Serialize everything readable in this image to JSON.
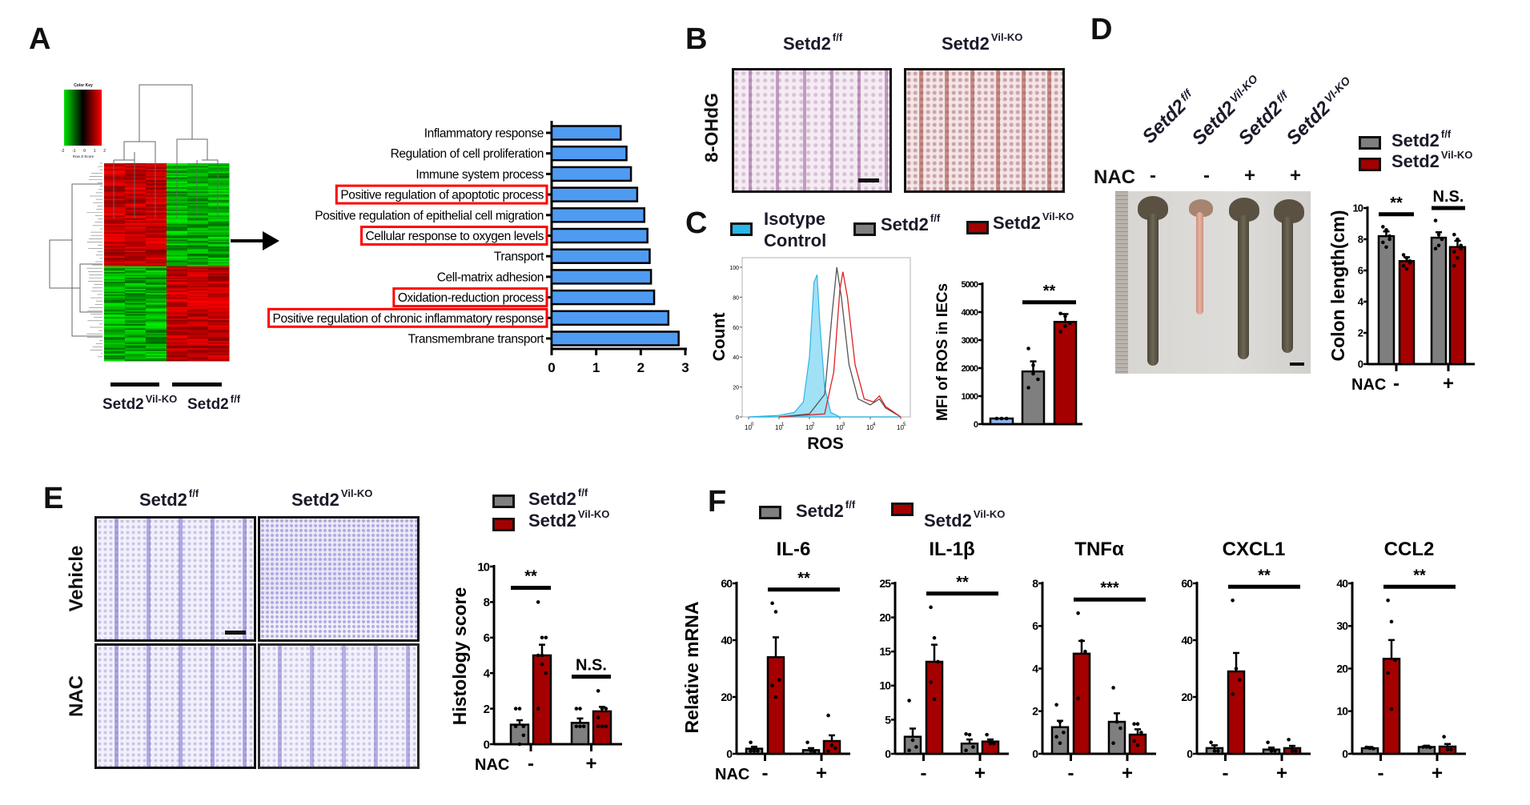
{
  "panels": {
    "a": "A",
    "b": "B",
    "c": "C",
    "d": "D",
    "e": "E",
    "f": "F"
  },
  "genotypes": {
    "ff": {
      "base": "Setd2",
      "sup": "f/f"
    },
    "ko": {
      "base": "Setd2",
      "sup": "Vil-KO"
    },
    "ko_alt": {
      "base": "Setd2",
      "sup": "Vl-KO"
    },
    "isotype_line1": "Isotype",
    "isotype_line2": "Control"
  },
  "colors": {
    "ff": "#7f7f7f",
    "ko": "#a40000",
    "isotype": "#29b6e8",
    "isotype_bar": "#8fb4f0",
    "go_bar": "#4f9bf2",
    "highlight_box": "#ff0000",
    "heat_high": "#ff0000",
    "heat_low": "#00e000"
  },
  "panel_a": {
    "color_key_title": "Color Key",
    "color_key_ticks": [
      "-2",
      "-1",
      "0",
      "1",
      "2"
    ],
    "color_key_label": "Row Z-Score"
  },
  "panel_b": {
    "stain_label": "8-OHdG"
  },
  "panel_d": {
    "nac_label": "NAC",
    "nac_signs": [
      "-",
      "-",
      "+",
      "+"
    ]
  },
  "panel_e": {
    "row_labels": [
      "Vehicle",
      "NAC"
    ]
  },
  "chart_data": [
    {
      "type": "bar",
      "orientation": "horizontal",
      "categories": [
        "Inflammatory response",
        "Regulation of cell proliferation",
        "Immune system process",
        "Positive regulation of apoptotic process",
        "Positive regulation of epithelial cell migration",
        "Cellular response to oxygen levels",
        "Transport",
        "Cell-matrix adhesion",
        "Oxidation-reduction process",
        "Positive regulation of chronic inflammatory response",
        "Transmembrane transport"
      ],
      "values": [
        1.55,
        1.68,
        1.78,
        1.92,
        2.08,
        2.15,
        2.2,
        2.23,
        2.3,
        2.62,
        2.85
      ],
      "highlighted": [
        3,
        5,
        8,
        9
      ],
      "xlim": [
        0,
        3
      ],
      "xticks": [
        "0",
        "1",
        "2",
        "3"
      ],
      "xlabel": "",
      "ylabel": ""
    },
    {
      "type": "line",
      "subtype": "flow-cytometry-histogram",
      "xlabel": "ROS",
      "ylabel": "Count",
      "x_scale": "log",
      "xlim": [
        1,
        100000
      ],
      "ylim": [
        0,
        100
      ],
      "xtick_base": "10",
      "xtick_exponents": [
        "0",
        "1",
        "2",
        "3",
        "4",
        "5"
      ],
      "yticks": [
        "0",
        "20",
        "40",
        "60",
        "80",
        "100"
      ],
      "series": [
        {
          "group": "isotype",
          "filled": true,
          "x": [
            1,
            10,
            32,
            63,
            100,
            141,
            178,
            224,
            316,
            501,
            1000,
            100000
          ],
          "y": [
            0,
            1,
            3,
            10,
            40,
            90,
            95,
            60,
            20,
            3,
            0,
            0
          ]
        },
        {
          "group": "ff",
          "filled": false,
          "x": [
            10,
            100,
            316,
            562,
            794,
            1122,
            1995,
            3981,
            10000,
            19953,
            31623,
            100000
          ],
          "y": [
            0,
            2,
            15,
            70,
            100,
            80,
            35,
            12,
            8,
            12,
            6,
            0
          ]
        },
        {
          "group": "ko",
          "filled": false,
          "x": [
            10,
            316,
            631,
            1000,
            1259,
            1778,
            3162,
            6310,
            12589,
            19953,
            31623,
            100000
          ],
          "y": [
            0,
            2,
            30,
            85,
            97,
            80,
            35,
            12,
            10,
            14,
            7,
            0
          ]
        }
      ]
    },
    {
      "type": "bar",
      "ylabel": "MFI of ROS in IECs",
      "ylim": [
        0,
        5000
      ],
      "yticks": [
        "0",
        "1000",
        "2000",
        "3000",
        "4000",
        "5000"
      ],
      "bars": [
        {
          "group": "isotype",
          "value": 200,
          "sem": 0,
          "points": [
            200,
            200,
            200
          ]
        },
        {
          "group": "ff",
          "value": 1880,
          "sem": 360,
          "points": [
            2700,
            2100,
            1600,
            1300,
            1800
          ]
        },
        {
          "group": "ko",
          "value": 3650,
          "sem": 280,
          "points": [
            3950,
            3850,
            3600,
            3300,
            3500
          ]
        }
      ],
      "significance": [
        {
          "label": "**",
          "from": 1,
          "to": 2
        }
      ]
    },
    {
      "type": "bar",
      "ylabel": "Colon length(cm)",
      "ylim": [
        0,
        10
      ],
      "yticks": [
        "0",
        "2",
        "4",
        "6",
        "8",
        "10"
      ],
      "x_row_label": "NAC",
      "groups": [
        "-",
        "+"
      ],
      "bars": [
        {
          "group": "ff",
          "nac": 0,
          "value": 8.2,
          "sem": 0.3,
          "points": [
            8.8,
            8.6,
            8.2,
            7.8,
            7.5,
            8.0
          ]
        },
        {
          "group": "ko",
          "nac": 0,
          "value": 6.6,
          "sem": 0.25,
          "points": [
            7.0,
            6.8,
            6.5,
            6.3,
            6.1,
            6.6
          ]
        },
        {
          "group": "ff",
          "nac": 1,
          "value": 8.1,
          "sem": 0.35,
          "points": [
            9.2,
            8.3,
            8.0,
            7.4,
            7.6
          ]
        },
        {
          "group": "ko",
          "nac": 1,
          "value": 7.5,
          "sem": 0.4,
          "points": [
            8.3,
            8.0,
            7.6,
            7.2,
            6.8,
            7.4,
            6.3
          ]
        }
      ],
      "significance": [
        {
          "label": "**",
          "from": 0,
          "to": 1
        },
        {
          "label": "N.S.",
          "from": 2,
          "to": 3
        }
      ]
    },
    {
      "type": "bar",
      "ylabel": "Histology score",
      "ylim": [
        0,
        10
      ],
      "yticks": [
        "0",
        "2",
        "4",
        "6",
        "8",
        "10"
      ],
      "x_row_label": "NAC",
      "groups": [
        "-",
        "+"
      ],
      "bars": [
        {
          "group": "ff",
          "nac": 0,
          "value": 1.1,
          "sem": 0.25,
          "points": [
            2,
            2,
            1,
            1,
            0,
            0.5
          ]
        },
        {
          "group": "ko",
          "nac": 0,
          "value": 5.0,
          "sem": 0.6,
          "points": [
            8,
            6,
            6,
            5,
            4.5,
            4,
            2,
            5
          ]
        },
        {
          "group": "ff",
          "nac": 1,
          "value": 1.2,
          "sem": 0.25,
          "points": [
            2,
            2,
            1,
            1,
            1,
            1
          ]
        },
        {
          "group": "ko",
          "nac": 1,
          "value": 1.85,
          "sem": 0.25,
          "points": [
            3,
            2,
            2,
            1.5,
            1,
            1,
            1
          ]
        }
      ],
      "significance": [
        {
          "label": "**",
          "from": 0,
          "to": 1
        },
        {
          "label": "N.S.",
          "from": 2,
          "to": 3
        }
      ]
    },
    {
      "type": "bar",
      "title": "IL-6",
      "ylabel": "Relative mRNA",
      "x_row_label": "NAC",
      "ylim": [
        0,
        60
      ],
      "yticks": [
        "0",
        "20",
        "40",
        "60"
      ],
      "groups": [
        "-",
        "+"
      ],
      "bars": [
        {
          "group": "ff",
          "nac": 0,
          "value": 1.8,
          "sem": 0.7,
          "points": [
            4,
            1,
            1,
            1
          ]
        },
        {
          "group": "ko",
          "nac": 0,
          "value": 34,
          "sem": 7,
          "points": [
            53,
            50,
            26,
            24,
            20
          ]
        },
        {
          "group": "ff",
          "nac": 1,
          "value": 1.3,
          "sem": 0.7,
          "points": [
            4,
            1,
            0.5
          ]
        },
        {
          "group": "ko",
          "nac": 1,
          "value": 4.5,
          "sem": 2,
          "points": [
            13.5,
            3,
            2,
            1
          ]
        }
      ],
      "significance": [
        {
          "label": "**",
          "from": 1,
          "to": 3
        }
      ]
    },
    {
      "type": "bar",
      "title": "IL-1β",
      "ylim": [
        0,
        25
      ],
      "yticks": [
        "0",
        "5",
        "10",
        "15",
        "20",
        "25"
      ],
      "groups": [
        "-",
        "+"
      ],
      "bars": [
        {
          "group": "ff",
          "nac": 0,
          "value": 2.5,
          "sem": 1.2,
          "points": [
            7.8,
            2,
            1,
            0.5
          ]
        },
        {
          "group": "ko",
          "nac": 0,
          "value": 13.5,
          "sem": 2.5,
          "points": [
            21.5,
            17,
            13.5,
            10.5,
            8
          ]
        },
        {
          "group": "ff",
          "nac": 1,
          "value": 1.5,
          "sem": 0.6,
          "points": [
            2.9,
            2.8,
            1,
            0.5
          ]
        },
        {
          "group": "ko",
          "nac": 1,
          "value": 1.8,
          "sem": 0.3,
          "points": [
            2.8,
            1.5,
            1.5
          ]
        }
      ],
      "significance": [
        {
          "label": "**",
          "from": 1,
          "to": 3
        }
      ]
    },
    {
      "type": "bar",
      "title": "TNFα",
      "ylim": [
        0,
        8
      ],
      "yticks": [
        "0",
        "2",
        "4",
        "6",
        "8"
      ],
      "groups": [
        "-",
        "+"
      ],
      "bars": [
        {
          "group": "ff",
          "nac": 0,
          "value": 1.25,
          "sem": 0.3,
          "points": [
            2.3,
            1.5,
            1,
            0.8,
            0.5
          ]
        },
        {
          "group": "ko",
          "nac": 0,
          "value": 4.7,
          "sem": 0.6,
          "points": [
            6.6,
            5.3,
            4.8,
            2.6
          ]
        },
        {
          "group": "ff",
          "nac": 1,
          "value": 1.5,
          "sem": 0.4,
          "points": [
            3.1,
            1.5,
            1.2,
            0.5
          ]
        },
        {
          "group": "ko",
          "nac": 1,
          "value": 0.9,
          "sem": 0.25,
          "points": [
            1.4,
            1.4,
            1,
            0.6,
            0.4
          ]
        }
      ],
      "significance": [
        {
          "label": "***",
          "from": 1,
          "to": 3
        }
      ]
    },
    {
      "type": "bar",
      "title": "CXCL1",
      "ylim": [
        0,
        60
      ],
      "yticks": [
        "0",
        "20",
        "40",
        "60"
      ],
      "groups": [
        "-",
        "+"
      ],
      "bars": [
        {
          "group": "ff",
          "nac": 0,
          "value": 2,
          "sem": 1,
          "points": [
            4,
            1,
            1
          ]
        },
        {
          "group": "ko",
          "nac": 0,
          "value": 29,
          "sem": 6.5,
          "points": [
            54,
            30,
            26,
            21
          ]
        },
        {
          "group": "ff",
          "nac": 1,
          "value": 1.5,
          "sem": 0.7,
          "points": [
            4,
            1,
            1
          ]
        },
        {
          "group": "ko",
          "nac": 1,
          "value": 2,
          "sem": 0.8,
          "points": [
            5,
            1,
            1
          ]
        }
      ],
      "significance": [
        {
          "label": "**",
          "from": 1,
          "to": 3
        }
      ]
    },
    {
      "type": "bar",
      "title": "CCL2",
      "ylim": [
        0,
        40
      ],
      "yticks": [
        "0",
        "10",
        "20",
        "30",
        "40"
      ],
      "groups": [
        "-",
        "+"
      ],
      "bars": [
        {
          "group": "ff",
          "nac": 0,
          "value": 1.3,
          "sem": 0.3,
          "points": [
            1.5,
            1.3,
            1.2
          ]
        },
        {
          "group": "ko",
          "nac": 0,
          "value": 22.3,
          "sem": 4.4,
          "points": [
            36,
            31,
            22,
            19,
            10.5
          ]
        },
        {
          "group": "ff",
          "nac": 1,
          "value": 1.6,
          "sem": 0.3,
          "points": [
            1.6,
            1.6,
            1.5
          ]
        },
        {
          "group": "ko",
          "nac": 1,
          "value": 1.7,
          "sem": 0.6,
          "points": [
            4,
            1,
            1
          ]
        }
      ],
      "significance": [
        {
          "label": "**",
          "from": 1,
          "to": 3
        }
      ]
    }
  ]
}
